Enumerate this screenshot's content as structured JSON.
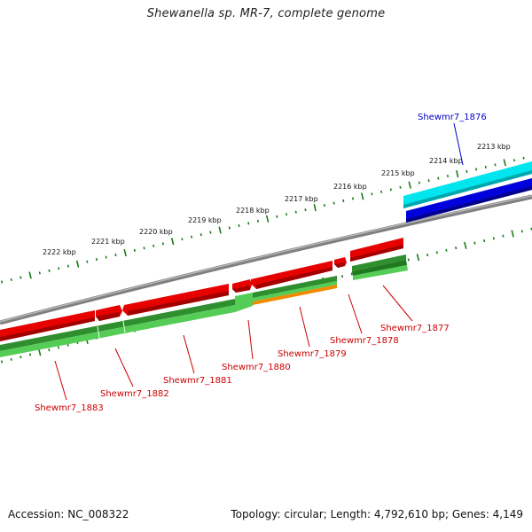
{
  "title": "Shewanella sp. MR-7, complete genome",
  "footer": {
    "accession": "Accession: NC_008322",
    "stats": "Topology: circular; Length: 4,792,610 bp; Genes: 4,149"
  },
  "colors": {
    "backbone": "#808080",
    "tick": "#1a7a1a",
    "gene_red": "#e60000",
    "gene_green": "#2f8f2f",
    "gene_lightgreen": "#55cc55",
    "gene_orange": "#f08a00",
    "gene_cyan": "#00e5ee",
    "gene_blue": "#0000dd",
    "label_red": "#cc0000",
    "label_blue": "#0000cc"
  },
  "kbp_labels": [
    "2213 kbp",
    "2214 kbp",
    "2215 kbp",
    "2216 kbp",
    "2217 kbp",
    "2218 kbp",
    "2219 kbp",
    "2220 kbp",
    "2221 kbp",
    "2222 kbp"
  ],
  "gene_labels": [
    "Shewmr7_1876",
    "Shewmr7_1877",
    "Shewmr7_1878",
    "Shewmr7_1879",
    "Shewmr7_1880",
    "Shewmr7_1881",
    "Shewmr7_1882",
    "Shewmr7_1883"
  ]
}
